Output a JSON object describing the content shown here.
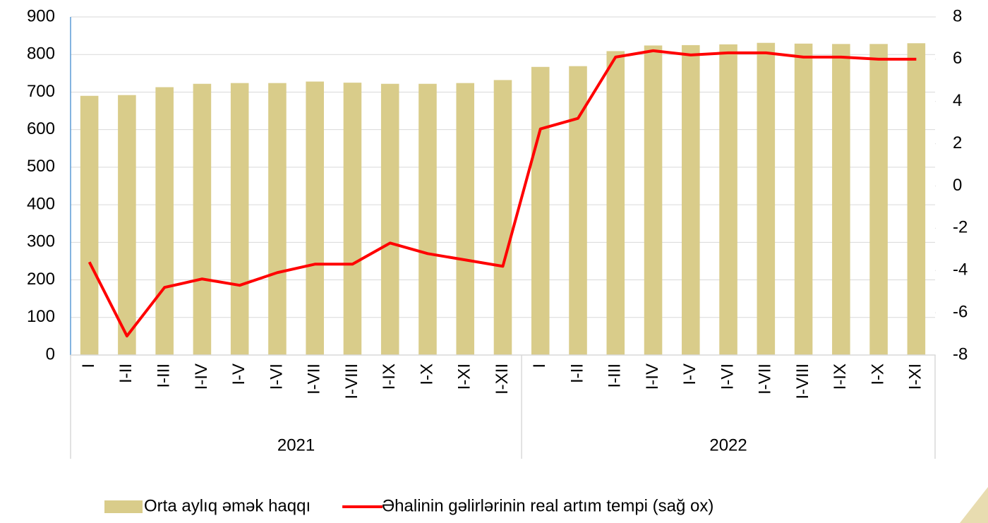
{
  "chart_data": {
    "type": "bar_line",
    "groups": [
      {
        "name": "2021",
        "categories": [
          "I",
          "I-II",
          "I-III",
          "I-IV",
          "I-V",
          "I-VI",
          "I-VII",
          "I-VIII",
          "I-IX",
          "I-X",
          "I-XI",
          "I-XII"
        ]
      },
      {
        "name": "2022",
        "categories": [
          "I",
          "I-II",
          "I-III",
          "I-IV",
          "I-V",
          "I-VI",
          "I-VII",
          "I-VIII",
          "I-IX",
          "I-X",
          "I-XI"
        ]
      }
    ],
    "series": [
      {
        "name": "Orta aylıq əmək haqqı",
        "type": "bar",
        "color": "#d9cc8a",
        "axis": "y",
        "values": [
          690,
          692,
          713,
          722,
          724,
          724,
          728,
          725,
          722,
          722,
          724,
          732,
          767,
          769,
          809,
          824,
          825,
          827,
          831,
          829,
          828,
          828,
          830
        ]
      },
      {
        "name": "Əhalinin gəlirlərinin real artım tempi (sağ ox)",
        "type": "line",
        "color": "#ff0000",
        "axis": "y2",
        "values": [
          -3.6,
          -7.1,
          -4.8,
          -4.4,
          -4.7,
          -4.1,
          -3.7,
          -3.7,
          -2.7,
          -3.2,
          -3.5,
          -3.8,
          2.7,
          3.2,
          6.1,
          6.4,
          6.2,
          6.3,
          6.3,
          6.1,
          6.1,
          6.0,
          6.0
        ]
      }
    ],
    "ylim": [
      0,
      900
    ],
    "yticks": [
      0,
      100,
      200,
      300,
      400,
      500,
      600,
      700,
      800,
      900
    ],
    "y2lim": [
      -8,
      8
    ],
    "y2ticks": [
      -8,
      -6,
      -4,
      -2,
      0,
      2,
      4,
      6,
      8
    ],
    "grid": true,
    "legend": "bottom"
  }
}
